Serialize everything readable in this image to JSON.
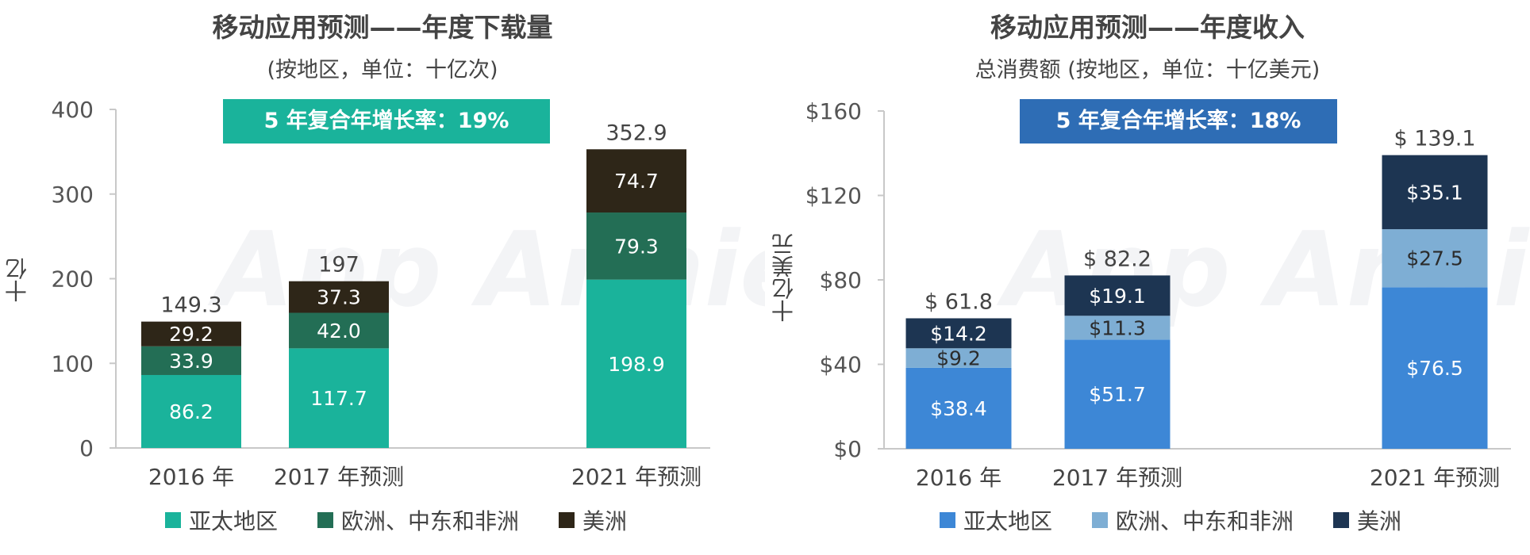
{
  "chart_data": [
    {
      "type": "bar",
      "stacked": true,
      "title": "移动应用预测——年度下载量",
      "subtitle": "(按地区，单位：十亿次)",
      "ylabel": "十亿",
      "ylim": [
        0,
        400
      ],
      "yticks": [
        "0",
        "100",
        "200",
        "300",
        "400"
      ],
      "categories": [
        "2016 年",
        "2017 年预测",
        "2021 年预测"
      ],
      "series": [
        {
          "name": "亚太地区",
          "values": [
            86.2,
            117.7,
            198.9
          ],
          "labels": [
            "86.2",
            "117.7",
            "198.9"
          ],
          "color": "#1ab39b"
        },
        {
          "name": "欧洲、中东和非洲",
          "values": [
            33.9,
            42.0,
            79.3
          ],
          "labels": [
            "33.9",
            "42.0",
            "79.3"
          ],
          "color": "#236e55"
        },
        {
          "name": "美洲",
          "values": [
            29.2,
            37.3,
            74.7
          ],
          "labels": [
            "29.2",
            "37.3",
            "74.7"
          ],
          "color": "#2e2618"
        }
      ],
      "totals": [
        "149.3",
        "197",
        "352.9"
      ],
      "cagr": "5 年复合年增长率：19%",
      "cagr_color": "#1ab39b",
      "watermark": "App Annie"
    },
    {
      "type": "bar",
      "stacked": true,
      "title": "移动应用预测——年度收入",
      "subtitle": "总消费额 (按地区，单位：十亿美元)",
      "ylabel": "十亿美元",
      "ylim": [
        0,
        160
      ],
      "yticks": [
        "$0",
        "$40",
        "$80",
        "$120",
        "$160"
      ],
      "categories": [
        "2016 年",
        "2017 年预测",
        "2021 年预测"
      ],
      "series": [
        {
          "name": "亚太地区",
          "values": [
            38.4,
            51.7,
            76.5
          ],
          "labels": [
            "$38.4",
            "$51.7",
            "$76.5"
          ],
          "color": "#3d87d6"
        },
        {
          "name": "欧洲、中东和非洲",
          "values": [
            9.2,
            11.3,
            27.5
          ],
          "labels": [
            "$9.2",
            "$11.3",
            "$27.5"
          ],
          "color": "#7eaed4"
        },
        {
          "name": "美洲",
          "values": [
            14.2,
            19.1,
            35.1
          ],
          "labels": [
            "$14.2",
            "$19.1",
            "$35.1"
          ],
          "color": "#1d3552"
        }
      ],
      "totals": [
        "$ 61.8",
        "$ 82.2",
        "$ 139.1"
      ],
      "cagr": "5 年复合年增长率：18%",
      "cagr_color": "#2e6db5",
      "watermark": "App Annie"
    }
  ]
}
